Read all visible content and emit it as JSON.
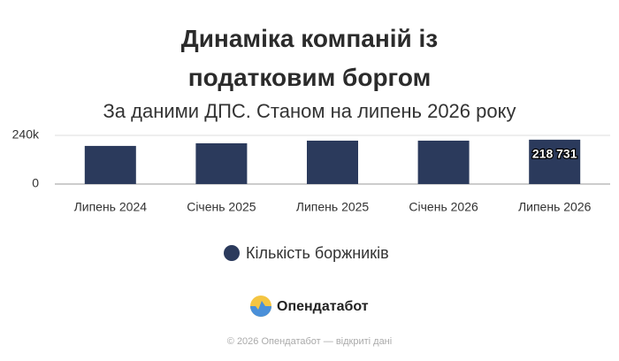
{
  "chart_data": {
    "type": "bar",
    "title": "Динаміка компаній із податковим боргом",
    "subtitle": "За даними ДПС. Станом на липень 2026 року",
    "categories": [
      "Липень 2024",
      "Січень 2025",
      "Липень 2025",
      "Січень 2026",
      "Липень 2026"
    ],
    "series": [
      {
        "name": "Кількість боржників",
        "color": "#2b3a5c",
        "values": [
          188000,
          201000,
          214000,
          214000,
          218731
        ],
        "value_labels": [
          null,
          null,
          null,
          null,
          "218 731"
        ]
      }
    ],
    "ylim": [
      0,
      240000
    ],
    "yticks": [
      0,
      {
        "value": 240000,
        "label": "240k"
      }
    ],
    "grid": true
  },
  "brand": "Опендатабот",
  "footer": "© 2026 Опендатабот — відкриті дані"
}
